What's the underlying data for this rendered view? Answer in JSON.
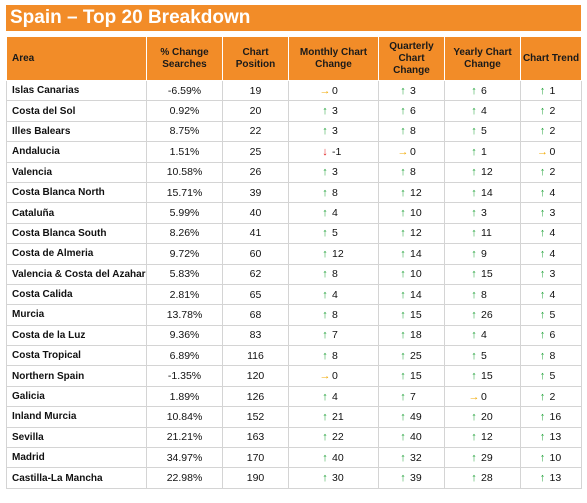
{
  "title": "Spain – Top 20 Breakdown",
  "columns": [
    "Area",
    "% Change Searches",
    "Chart Position",
    "Monthly Chart Change",
    "Quarterly Chart Change",
    "Yearly Chart Change",
    "Chart Trend"
  ],
  "colors": {
    "header": "#f28c28",
    "up": "#22a23a",
    "down": "#e11e1e",
    "flat": "#f0a800"
  },
  "rows": [
    {
      "area": "Islas Canarias",
      "pct": "-6.59%",
      "pos": "19",
      "monthly": {
        "dir": "flat",
        "val": "0"
      },
      "quarterly": {
        "dir": "up",
        "val": "3"
      },
      "yearly": {
        "dir": "up",
        "val": "6"
      },
      "trend": {
        "dir": "up",
        "val": "1"
      }
    },
    {
      "area": "Costa del Sol",
      "pct": "0.92%",
      "pos": "20",
      "monthly": {
        "dir": "up",
        "val": "3"
      },
      "quarterly": {
        "dir": "up",
        "val": "6"
      },
      "yearly": {
        "dir": "up",
        "val": "4"
      },
      "trend": {
        "dir": "up",
        "val": "2"
      }
    },
    {
      "area": "Illes Balears",
      "pct": "8.75%",
      "pos": "22",
      "monthly": {
        "dir": "up",
        "val": "3"
      },
      "quarterly": {
        "dir": "up",
        "val": "8"
      },
      "yearly": {
        "dir": "up",
        "val": "5"
      },
      "trend": {
        "dir": "up",
        "val": "2"
      }
    },
    {
      "area": "Andalucia",
      "pct": "1.51%",
      "pos": "25",
      "monthly": {
        "dir": "down",
        "val": "-1"
      },
      "quarterly": {
        "dir": "flat",
        "val": "0"
      },
      "yearly": {
        "dir": "up",
        "val": "1"
      },
      "trend": {
        "dir": "flat",
        "val": "0"
      }
    },
    {
      "area": "Valencia",
      "pct": "10.58%",
      "pos": "26",
      "monthly": {
        "dir": "up",
        "val": "3"
      },
      "quarterly": {
        "dir": "up",
        "val": "8"
      },
      "yearly": {
        "dir": "up",
        "val": "12"
      },
      "trend": {
        "dir": "up",
        "val": "2"
      }
    },
    {
      "area": "Costa Blanca North",
      "pct": "15.71%",
      "pos": "39",
      "monthly": {
        "dir": "up",
        "val": "8"
      },
      "quarterly": {
        "dir": "up",
        "val": "12"
      },
      "yearly": {
        "dir": "up",
        "val": "14"
      },
      "trend": {
        "dir": "up",
        "val": "4"
      }
    },
    {
      "area": "Cataluña",
      "pct": "5.99%",
      "pos": "40",
      "monthly": {
        "dir": "up",
        "val": "4"
      },
      "quarterly": {
        "dir": "up",
        "val": "10"
      },
      "yearly": {
        "dir": "up",
        "val": "3"
      },
      "trend": {
        "dir": "up",
        "val": "3"
      }
    },
    {
      "area": "Costa Blanca South",
      "pct": "8.26%",
      "pos": "41",
      "monthly": {
        "dir": "up",
        "val": "5"
      },
      "quarterly": {
        "dir": "up",
        "val": "12"
      },
      "yearly": {
        "dir": "up",
        "val": "11"
      },
      "trend": {
        "dir": "up",
        "val": "4"
      }
    },
    {
      "area": "Costa de Almeria",
      "pct": "9.72%",
      "pos": "60",
      "monthly": {
        "dir": "up",
        "val": "12"
      },
      "quarterly": {
        "dir": "up",
        "val": "14"
      },
      "yearly": {
        "dir": "up",
        "val": "9"
      },
      "trend": {
        "dir": "up",
        "val": "4"
      }
    },
    {
      "area": "Valencia & Costa del Azahar",
      "pct": "5.83%",
      "pos": "62",
      "monthly": {
        "dir": "up",
        "val": "8"
      },
      "quarterly": {
        "dir": "up",
        "val": "10"
      },
      "yearly": {
        "dir": "up",
        "val": "15"
      },
      "trend": {
        "dir": "up",
        "val": "3"
      }
    },
    {
      "area": "Costa Calida",
      "pct": "2.81%",
      "pos": "65",
      "monthly": {
        "dir": "up",
        "val": "4"
      },
      "quarterly": {
        "dir": "up",
        "val": "14"
      },
      "yearly": {
        "dir": "up",
        "val": "8"
      },
      "trend": {
        "dir": "up",
        "val": "4"
      }
    },
    {
      "area": "Murcia",
      "pct": "13.78%",
      "pos": "68",
      "monthly": {
        "dir": "up",
        "val": "8"
      },
      "quarterly": {
        "dir": "up",
        "val": "15"
      },
      "yearly": {
        "dir": "up",
        "val": "26"
      },
      "trend": {
        "dir": "up",
        "val": "5"
      }
    },
    {
      "area": "Costa de la Luz",
      "pct": "9.36%",
      "pos": "83",
      "monthly": {
        "dir": "up",
        "val": "7"
      },
      "quarterly": {
        "dir": "up",
        "val": "18"
      },
      "yearly": {
        "dir": "up",
        "val": "4"
      },
      "trend": {
        "dir": "up",
        "val": "6"
      }
    },
    {
      "area": "Costa Tropical",
      "pct": "6.89%",
      "pos": "116",
      "monthly": {
        "dir": "up",
        "val": "8"
      },
      "quarterly": {
        "dir": "up",
        "val": "25"
      },
      "yearly": {
        "dir": "up",
        "val": "5"
      },
      "trend": {
        "dir": "up",
        "val": "8"
      }
    },
    {
      "area": "Northern Spain",
      "pct": "-1.35%",
      "pos": "120",
      "monthly": {
        "dir": "flat",
        "val": "0"
      },
      "quarterly": {
        "dir": "up",
        "val": "15"
      },
      "yearly": {
        "dir": "up",
        "val": "15"
      },
      "trend": {
        "dir": "up",
        "val": "5"
      }
    },
    {
      "area": "Galicia",
      "pct": "1.89%",
      "pos": "126",
      "monthly": {
        "dir": "up",
        "val": "4"
      },
      "quarterly": {
        "dir": "up",
        "val": "7"
      },
      "yearly": {
        "dir": "flat",
        "val": "0"
      },
      "trend": {
        "dir": "up",
        "val": "2"
      }
    },
    {
      "area": "Inland Murcia",
      "pct": "10.84%",
      "pos": "152",
      "monthly": {
        "dir": "up",
        "val": "21"
      },
      "quarterly": {
        "dir": "up",
        "val": "49"
      },
      "yearly": {
        "dir": "up",
        "val": "20"
      },
      "trend": {
        "dir": "up",
        "val": "16"
      }
    },
    {
      "area": "Sevilla",
      "pct": "21.21%",
      "pos": "163",
      "monthly": {
        "dir": "up",
        "val": "22"
      },
      "quarterly": {
        "dir": "up",
        "val": "40"
      },
      "yearly": {
        "dir": "up",
        "val": "12"
      },
      "trend": {
        "dir": "up",
        "val": "13"
      }
    },
    {
      "area": "Madrid",
      "pct": "34.97%",
      "pos": "170",
      "monthly": {
        "dir": "up",
        "val": "40"
      },
      "quarterly": {
        "dir": "up",
        "val": "32"
      },
      "yearly": {
        "dir": "up",
        "val": "29"
      },
      "trend": {
        "dir": "up",
        "val": "10"
      }
    },
    {
      "area": "Castilla-La Mancha",
      "pct": "22.98%",
      "pos": "190",
      "monthly": {
        "dir": "up",
        "val": "30"
      },
      "quarterly": {
        "dir": "up",
        "val": "39"
      },
      "yearly": {
        "dir": "up",
        "val": "28"
      },
      "trend": {
        "dir": "up",
        "val": "13"
      }
    }
  ]
}
